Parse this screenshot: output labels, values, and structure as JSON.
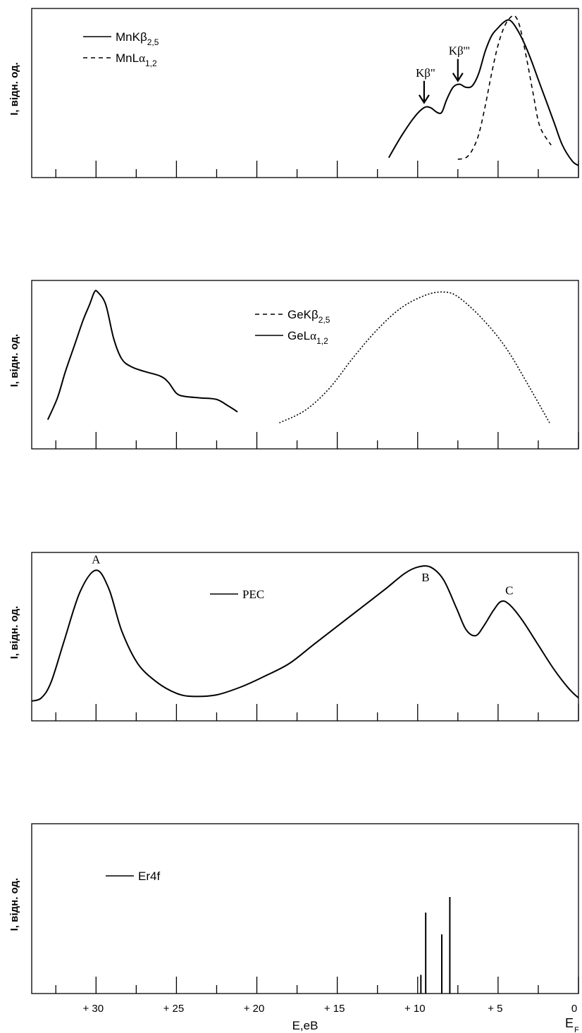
{
  "figure": {
    "x_axis": {
      "label": "E,eB",
      "tick_labels": [
        "+ 30",
        "+ 25",
        "+ 20",
        "+ 15",
        "+ 10",
        "+  5",
        "0"
      ],
      "tick_values": [
        30,
        25,
        20,
        15,
        10,
        5,
        0
      ],
      "fermi_label": "E",
      "fermi_sub": "F",
      "direction": "reversed",
      "range": [
        34,
        0
      ]
    }
  },
  "chart_data": [
    {
      "type": "line",
      "ylabel": "I, відн. од.",
      "xlim": [
        34,
        0
      ],
      "legend_position": "top-left",
      "series": [
        {
          "name": "MnKβ2,5",
          "legend_base": "MnKβ",
          "legend_sub": "2,5",
          "style": "solid",
          "points": [
            [
              11.8,
              0.1
            ],
            [
              11.0,
              0.24
            ],
            [
              10.2,
              0.36
            ],
            [
              9.6,
              0.42
            ],
            [
              9.2,
              0.42
            ],
            [
              8.8,
              0.39
            ],
            [
              8.5,
              0.39
            ],
            [
              8.2,
              0.47
            ],
            [
              7.8,
              0.55
            ],
            [
              7.4,
              0.57
            ],
            [
              7.0,
              0.55
            ],
            [
              6.6,
              0.56
            ],
            [
              6.2,
              0.64
            ],
            [
              5.8,
              0.78
            ],
            [
              5.4,
              0.88
            ],
            [
              5.0,
              0.93
            ],
            [
              4.6,
              0.97
            ],
            [
              4.3,
              0.98
            ],
            [
              4.0,
              0.95
            ],
            [
              3.5,
              0.86
            ],
            [
              3.0,
              0.74
            ],
            [
              2.5,
              0.6
            ],
            [
              2.0,
              0.46
            ],
            [
              1.5,
              0.32
            ],
            [
              1.0,
              0.18
            ],
            [
              0.4,
              0.08
            ],
            [
              0.0,
              0.05
            ]
          ]
        },
        {
          "name": "MnLα1,2",
          "legend_base": "MnL",
          "legend_greek": "α",
          "legend_sub": "1,2",
          "style": "dashed",
          "points": [
            [
              7.5,
              0.09
            ],
            [
              7.0,
              0.1
            ],
            [
              6.6,
              0.15
            ],
            [
              6.2,
              0.25
            ],
            [
              5.8,
              0.43
            ],
            [
              5.4,
              0.64
            ],
            [
              5.0,
              0.82
            ],
            [
              4.6,
              0.94
            ],
            [
              4.2,
              1.0
            ],
            [
              3.9,
              1.0
            ],
            [
              3.6,
              0.92
            ],
            [
              3.2,
              0.72
            ],
            [
              2.8,
              0.5
            ],
            [
              2.4,
              0.3
            ],
            [
              1.7,
              0.18
            ]
          ]
        }
      ],
      "annotations": [
        {
          "text": "Kβ\"",
          "x": 9.6,
          "y": 0.42
        },
        {
          "text": "Kβ'''",
          "x": 7.5,
          "y": 0.56
        }
      ]
    },
    {
      "type": "line",
      "ylabel": "I, відн. од.",
      "xlim": [
        34,
        0
      ],
      "legend_position": "top-center",
      "series": [
        {
          "name": "GeKβ2,5",
          "legend_base": "GeKβ",
          "legend_sub": "2,5",
          "style": "dotted",
          "points": [
            [
              18.6,
              0.14
            ],
            [
              17.0,
              0.22
            ],
            [
              15.5,
              0.36
            ],
            [
              14.0,
              0.56
            ],
            [
              12.5,
              0.74
            ],
            [
              11.0,
              0.88
            ],
            [
              9.5,
              0.96
            ],
            [
              8.4,
              0.98
            ],
            [
              7.5,
              0.95
            ],
            [
              6.0,
              0.81
            ],
            [
              4.5,
              0.62
            ],
            [
              3.0,
              0.36
            ],
            [
              1.8,
              0.14
            ]
          ]
        },
        {
          "name": "GeLα1,2",
          "legend_base": "GeL",
          "legend_greek": "α",
          "legend_sub": "1,2",
          "style": "solid",
          "points": [
            [
              33.0,
              0.16
            ],
            [
              32.4,
              0.3
            ],
            [
              31.9,
              0.47
            ],
            [
              31.3,
              0.65
            ],
            [
              30.8,
              0.8
            ],
            [
              30.4,
              0.9
            ],
            [
              30.1,
              0.98
            ],
            [
              29.9,
              0.98
            ],
            [
              29.4,
              0.9
            ],
            [
              28.9,
              0.68
            ],
            [
              28.4,
              0.55
            ],
            [
              27.8,
              0.5
            ],
            [
              27.0,
              0.47
            ],
            [
              26.0,
              0.44
            ],
            [
              25.5,
              0.4
            ],
            [
              25.0,
              0.33
            ],
            [
              24.5,
              0.31
            ],
            [
              23.5,
              0.3
            ],
            [
              22.5,
              0.29
            ],
            [
              21.8,
              0.25
            ],
            [
              21.2,
              0.21
            ]
          ]
        }
      ]
    },
    {
      "type": "line",
      "ylabel": "I, відн. од.",
      "xlim": [
        34,
        0
      ],
      "legend_position": "top-center",
      "series": [
        {
          "name": "PEC",
          "style": "solid",
          "points": [
            [
              34.0,
              0.1
            ],
            [
              33.4,
              0.12
            ],
            [
              32.8,
              0.22
            ],
            [
              32.0,
              0.48
            ],
            [
              31.0,
              0.8
            ],
            [
              30.0,
              0.94
            ],
            [
              29.2,
              0.82
            ],
            [
              28.4,
              0.55
            ],
            [
              27.4,
              0.34
            ],
            [
              26.2,
              0.22
            ],
            [
              25.0,
              0.15
            ],
            [
              24.0,
              0.13
            ],
            [
              22.5,
              0.14
            ],
            [
              21.0,
              0.19
            ],
            [
              19.5,
              0.26
            ],
            [
              18.0,
              0.34
            ],
            [
              16.5,
              0.46
            ],
            [
              15.0,
              0.58
            ],
            [
              13.5,
              0.7
            ],
            [
              12.0,
              0.82
            ],
            [
              10.8,
              0.92
            ],
            [
              10.0,
              0.96
            ],
            [
              9.2,
              0.96
            ],
            [
              8.4,
              0.88
            ],
            [
              7.6,
              0.7
            ],
            [
              7.0,
              0.56
            ],
            [
              6.4,
              0.52
            ],
            [
              5.9,
              0.58
            ],
            [
              5.3,
              0.68
            ],
            [
              4.8,
              0.74
            ],
            [
              4.3,
              0.72
            ],
            [
              3.5,
              0.62
            ],
            [
              2.5,
              0.46
            ],
            [
              1.5,
              0.3
            ],
            [
              0.6,
              0.18
            ],
            [
              0.0,
              0.12
            ]
          ]
        }
      ],
      "annotations": [
        {
          "text": "A",
          "x": 30.0,
          "y": 0.94
        },
        {
          "text": "B",
          "x": 9.6,
          "y": 0.96
        },
        {
          "text": "C",
          "x": 4.3,
          "y": 0.74
        }
      ]
    },
    {
      "type": "bar",
      "ylabel": "I, відн. од.",
      "xlim": [
        34,
        0
      ],
      "legend_position": "top-left",
      "series": [
        {
          "name": "Er4f",
          "style": "solid",
          "sticks": [
            [
              9.8,
              0.12
            ],
            [
              9.5,
              0.52
            ],
            [
              8.5,
              0.38
            ],
            [
              8.0,
              0.62
            ]
          ]
        }
      ]
    }
  ]
}
